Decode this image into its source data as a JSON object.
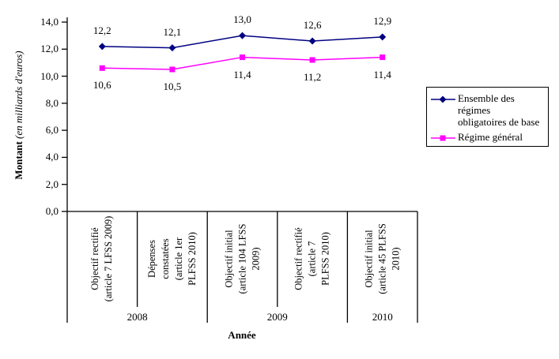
{
  "chart_data": {
    "type": "line",
    "title": "",
    "xlabel": "Année",
    "ylabel_bold": "Montant",
    "ylabel_italic": "(en milliards d'euros)",
    "ylim": [
      0,
      14
    ],
    "grid": false,
    "yticks": [
      "14,0",
      "12,0",
      "10,0",
      "8,0",
      "6,0",
      "4,0",
      "2,0",
      "0,0"
    ],
    "categories": [
      "Objectif rectifié\n(article 7 LFSS 2009)",
      "Dépenses\nconstatées\n(article 1er\nPLFSS 2010)",
      "Objectif initial\n(article 104 LFSS\n2009)",
      "Objectif rectifié\n(article 7\nPLFSS 2010)",
      "Objectif initial\n(article 45 PLFSS\n2010)"
    ],
    "year_groups": [
      {
        "label": "2008",
        "span": 2
      },
      {
        "label": "2009",
        "span": 2
      },
      {
        "label": "2010",
        "span": 1
      }
    ],
    "series": [
      {
        "name": "Ensemble des régimes obligatoires de base",
        "color": "#000080",
        "marker": "diamond",
        "label_position": "above",
        "values": [
          12.2,
          12.1,
          13.0,
          12.6,
          12.9
        ],
        "labels": [
          "12,2",
          "12,1",
          "13,0",
          "12,6",
          "12,9"
        ]
      },
      {
        "name": "Régime général",
        "color": "#FF00FF",
        "marker": "square",
        "label_position": "below",
        "values": [
          10.6,
          10.5,
          11.4,
          11.2,
          11.4
        ],
        "labels": [
          "10,6",
          "10,5",
          "11,4",
          "11,2",
          "11,4"
        ]
      }
    ],
    "legend": {
      "position": "right",
      "border_color": "#000000",
      "entries": [
        {
          "label": "Ensemble des régimes\nobligatoires de base",
          "marker": "diamond",
          "color": "#000080"
        },
        {
          "label": "Régime général",
          "marker": "square",
          "color": "#FF00FF"
        }
      ]
    },
    "axis_color": "#000000"
  }
}
